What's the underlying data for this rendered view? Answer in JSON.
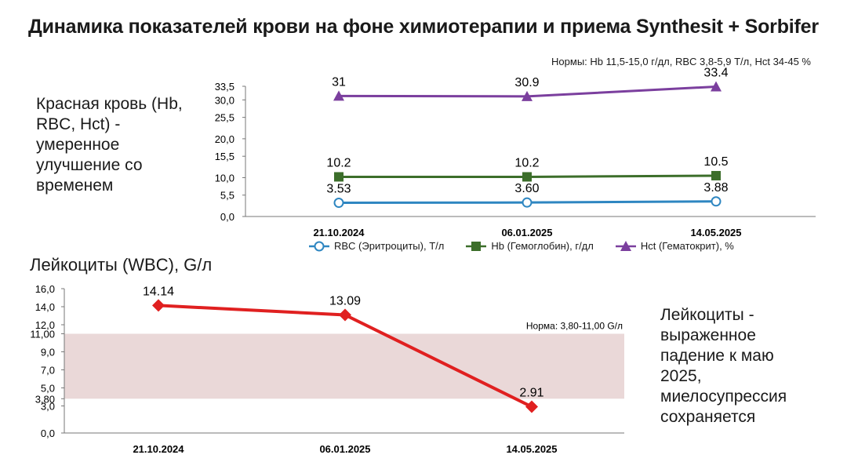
{
  "title": "Динамика показателей крови на фоне химиотерапии и приема Synthesit + Sorbifer",
  "norms_top": "Нормы: Hb 11,5-15,0 г/дл, RBC 3,8-5,9 Т/л, Hct 34-45 %",
  "left_text": "Красная кровь (Hb, RBC, Hct) - умеренное улучшение со временем",
  "wbc_title": "Лейкоциты (WBC), G/л",
  "right_text": "Лейкоциты - выраженное падение к маю 2025, миелосупрессия сохраняется",
  "chart_data": [
    {
      "type": "line",
      "categories": [
        "21.10.2024",
        "06.01.2025",
        "14.05.2025"
      ],
      "ylim": [
        0,
        33.5
      ],
      "yticks": [
        "0,0",
        "5,5",
        "10,0",
        "15,5",
        "20,0",
        "25,5",
        "30,0",
        "33,5"
      ],
      "ytick_values": [
        0,
        5.5,
        10,
        15.5,
        20,
        25.5,
        30,
        33.5
      ],
      "legend_position": "bottom",
      "series": [
        {
          "name": "RBC (Эритроциты), Т/л",
          "values": [
            3.53,
            3.6,
            3.88
          ],
          "labels": [
            "3.53",
            "3.60",
            "3.88"
          ],
          "color": "#2e86c1",
          "marker": "circle"
        },
        {
          "name": "Hb (Гемоглобин), г/дл",
          "values": [
            10.2,
            10.2,
            10.5
          ],
          "labels": [
            "10.2",
            "10.2",
            "10.5"
          ],
          "color": "#3c6e2a",
          "marker": "square"
        },
        {
          "name": "Hct (Гематокрит), %",
          "values": [
            31,
            30.9,
            33.4
          ],
          "labels": [
            "31",
            "30.9",
            "33.4"
          ],
          "color": "#7b3f9e",
          "marker": "triangle"
        }
      ]
    },
    {
      "type": "line",
      "categories": [
        "21.10.2024",
        "06.01.2025",
        "14.05.2025"
      ],
      "ylim": [
        0,
        16
      ],
      "yticks": [
        "0,0",
        "3,0",
        "3,80",
        "5,0",
        "7,0",
        "9,0",
        "11,00",
        "12,0",
        "14,0",
        "16,0"
      ],
      "ytick_values": [
        0,
        3,
        3.8,
        5,
        7,
        9,
        11,
        12,
        14,
        16
      ],
      "series": [
        {
          "name": "WBC",
          "values": [
            14.14,
            13.09,
            2.91
          ],
          "labels": [
            "14.14",
            "13.09",
            "2.91"
          ],
          "color": "#e02020",
          "marker": "diamond"
        }
      ],
      "norm_band": {
        "low": 3.8,
        "high": 11.0,
        "label": "Норма: 3,80-11,00 G/л",
        "color": "#ead8d8"
      }
    }
  ]
}
